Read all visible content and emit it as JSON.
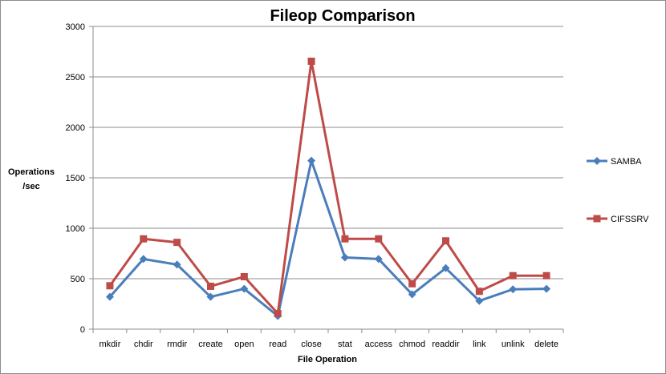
{
  "chart_data": {
    "type": "line",
    "title": "Fileop Comparison",
    "xlabel": "File Operation",
    "ylabel_lines": [
      "Operations",
      "/sec"
    ],
    "ylim": [
      0,
      3000
    ],
    "yticks": [
      0,
      500,
      1000,
      1500,
      2000,
      2500,
      3000
    ],
    "grid": true,
    "legend_placement": "right",
    "categories": [
      "mkdir",
      "chdir",
      "rmdir",
      "create",
      "open",
      "read",
      "close",
      "stat",
      "access",
      "chmod",
      "readdir",
      "link",
      "unlink",
      "delete"
    ],
    "series": [
      {
        "name": "SAMBA",
        "color": "#4a7ebb",
        "marker": "diamond",
        "values": [
          320,
          695,
          640,
          320,
          400,
          130,
          1670,
          710,
          695,
          345,
          605,
          280,
          395,
          400
        ]
      },
      {
        "name": "CIFSSRV",
        "color": "#be4b48",
        "marker": "square",
        "values": [
          430,
          895,
          860,
          425,
          520,
          155,
          2655,
          895,
          895,
          450,
          875,
          375,
          530,
          530
        ]
      }
    ]
  }
}
